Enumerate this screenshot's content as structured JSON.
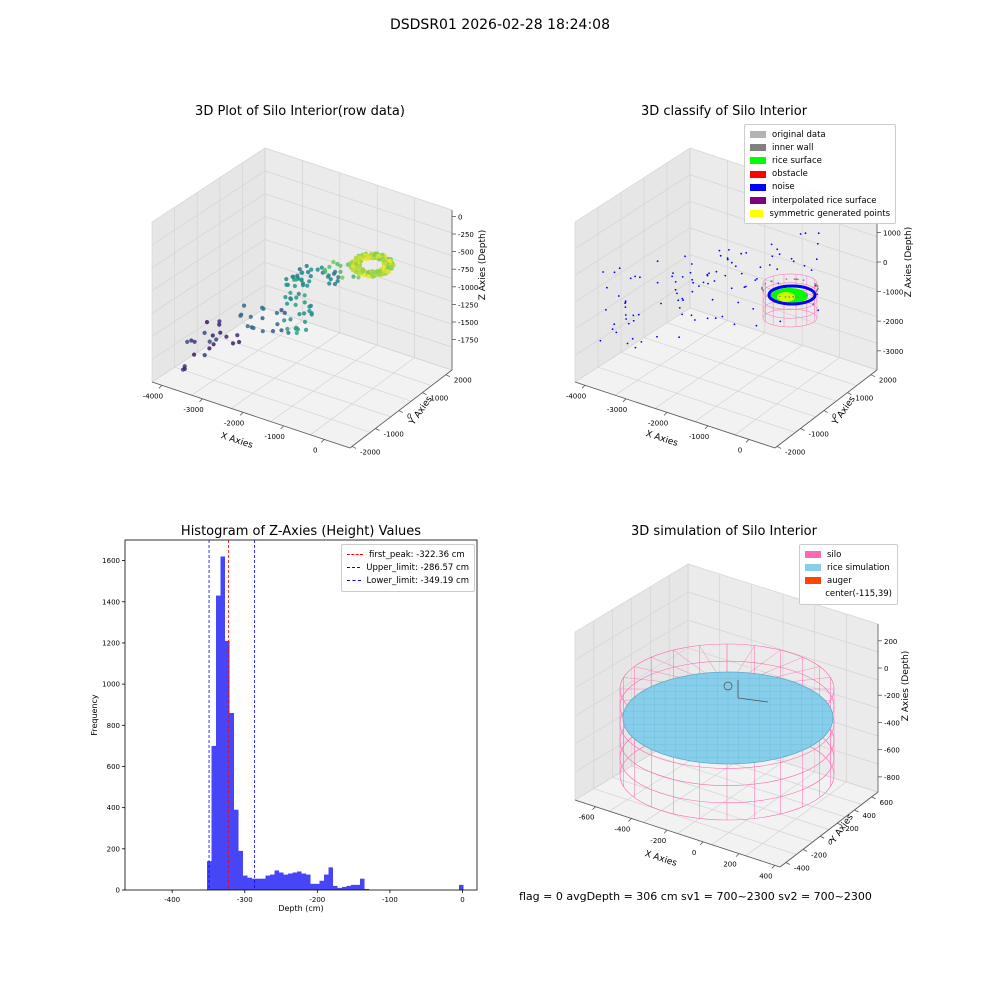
{
  "header": {
    "title": "DSDSR01 2026-02-28 18:24:08"
  },
  "footer": {
    "status_text": "flag = 0     avgDepth = 306 cm  sv1 = 700~2300  sv2 = 700~2300"
  },
  "chart_data": [
    {
      "type": "scatter",
      "title": "3D Plot of Silo Interior(row data)",
      "xlabel": "X Axies",
      "ylabel": "Y Axies",
      "zlabel": "Z Axies (Depth)",
      "x_ticks": [
        "-4000",
        "-3000",
        "-2000",
        "-1000",
        "0"
      ],
      "y_ticks": [
        "-2000",
        "-1000",
        "0",
        "1000",
        "2000"
      ],
      "z_ticks": [
        "0",
        "-250",
        "-500",
        "-750",
        "-1000",
        "-1250",
        "-1500",
        "-1750"
      ],
      "colormap": "viridis",
      "grid": true
    },
    {
      "type": "scatter",
      "title": "3D classify of Silo Interior",
      "xlabel": "X Axies",
      "ylabel": "Y Axies",
      "zlabel": "Z Axies (Depth)",
      "x_ticks": [
        "-4000",
        "-3000",
        "-2000",
        "-1000",
        "0"
      ],
      "y_ticks": [
        "-2000",
        "-1000",
        "0",
        "1000",
        "2000"
      ],
      "z_ticks": [
        "1000",
        "0",
        "-1000",
        "-2000",
        "-3000"
      ],
      "legend": [
        {
          "name": "original data",
          "color": "#b3b3b3"
        },
        {
          "name": "inner wall",
          "color": "#808080"
        },
        {
          "name": "rice surface",
          "color": "#00ff00"
        },
        {
          "name": "obstacle",
          "color": "#ff0000"
        },
        {
          "name": "noise",
          "color": "#0000ff"
        },
        {
          "name": "interpolated rice surface",
          "color": "#800080"
        },
        {
          "name": "symmetric generated points",
          "color": "#ffff00"
        }
      ],
      "legend_position": "top-right",
      "grid": true
    },
    {
      "type": "bar",
      "title": "Histogram of Z-Axies (Height) Values",
      "xlabel": "Depth (cm)",
      "ylabel": "Frequency",
      "xlim": [
        -465,
        20
      ],
      "ylim": [
        0,
        1700
      ],
      "x_ticks": [
        -400,
        -300,
        -200,
        -100,
        0
      ],
      "y_ticks": [
        0,
        200,
        400,
        600,
        800,
        1000,
        1200,
        1400,
        1600
      ],
      "bin_width": 6.2,
      "bin_left_edges": [
        -352,
        -345.8,
        -339.6,
        -333.4,
        -327.2,
        -321,
        -314.8,
        -308.6,
        -302.4,
        -296.2,
        -290,
        -283.8,
        -277.6,
        -271.4,
        -265.2,
        -259,
        -252.8,
        -246.6,
        -240.4,
        -234.2,
        -228,
        -221.8,
        -215.6,
        -209.4,
        -203.2,
        -197,
        -190.8,
        -184.6,
        -178.4,
        -172.2,
        -166,
        -159.8,
        -153.6,
        -147.4,
        -141.2,
        -135,
        -128.8,
        -122.6,
        -116.4,
        -110.2,
        -104,
        -97.8,
        -91.6,
        -85.4,
        -79.2,
        -73,
        -66.8,
        -60.6,
        -54.4,
        -48.2,
        -42,
        -35.8,
        -29.6,
        -23.4,
        -17.2,
        -11,
        -4.8
      ],
      "values": [
        140,
        700,
        1430,
        1620,
        1210,
        860,
        390,
        190,
        70,
        60,
        55,
        55,
        55,
        70,
        75,
        95,
        85,
        75,
        80,
        85,
        90,
        80,
        75,
        30,
        30,
        45,
        75,
        110,
        20,
        10,
        15,
        20,
        25,
        25,
        55,
        5,
        0,
        0,
        0,
        0,
        0,
        0,
        0,
        0,
        0,
        0,
        0,
        0,
        0,
        0,
        0,
        0,
        0,
        0,
        0,
        0,
        25
      ],
      "bar_color": "#4646f8",
      "reference_lines": [
        {
          "name": "first_peak: -322.36 cm",
          "value": -322.36,
          "color": "#ff0000"
        },
        {
          "name": "Upper_limit: -286.57 cm",
          "value": -286.57,
          "color": "#0000ff"
        },
        {
          "name": "Lower_limit: -349.19 cm",
          "value": -349.19,
          "color": "#0000ff"
        }
      ],
      "legend_position": "top-right"
    },
    {
      "type": "area",
      "title": "3D simulation of Silo Interior",
      "xlabel": "X Axies",
      "ylabel": "Y Axies",
      "zlabel": "Z Axies (Depth)",
      "x_ticks": [
        "-600",
        "-400",
        "-200",
        "0",
        "200",
        "400"
      ],
      "y_ticks": [
        "-400",
        "-200",
        "0",
        "200",
        "400",
        "600"
      ],
      "z_ticks": [
        "200",
        "0",
        "-200",
        "-400",
        "-600",
        "-800"
      ],
      "legend": [
        {
          "name": "silo",
          "color": "#ff69b4"
        },
        {
          "name": "rice simulation",
          "color": "#87ceeb"
        },
        {
          "name": "auger",
          "color": "#ff4500"
        },
        {
          "name": "center(-115,39)",
          "color": ""
        }
      ],
      "legend_position": "top-right",
      "grid": true
    }
  ]
}
